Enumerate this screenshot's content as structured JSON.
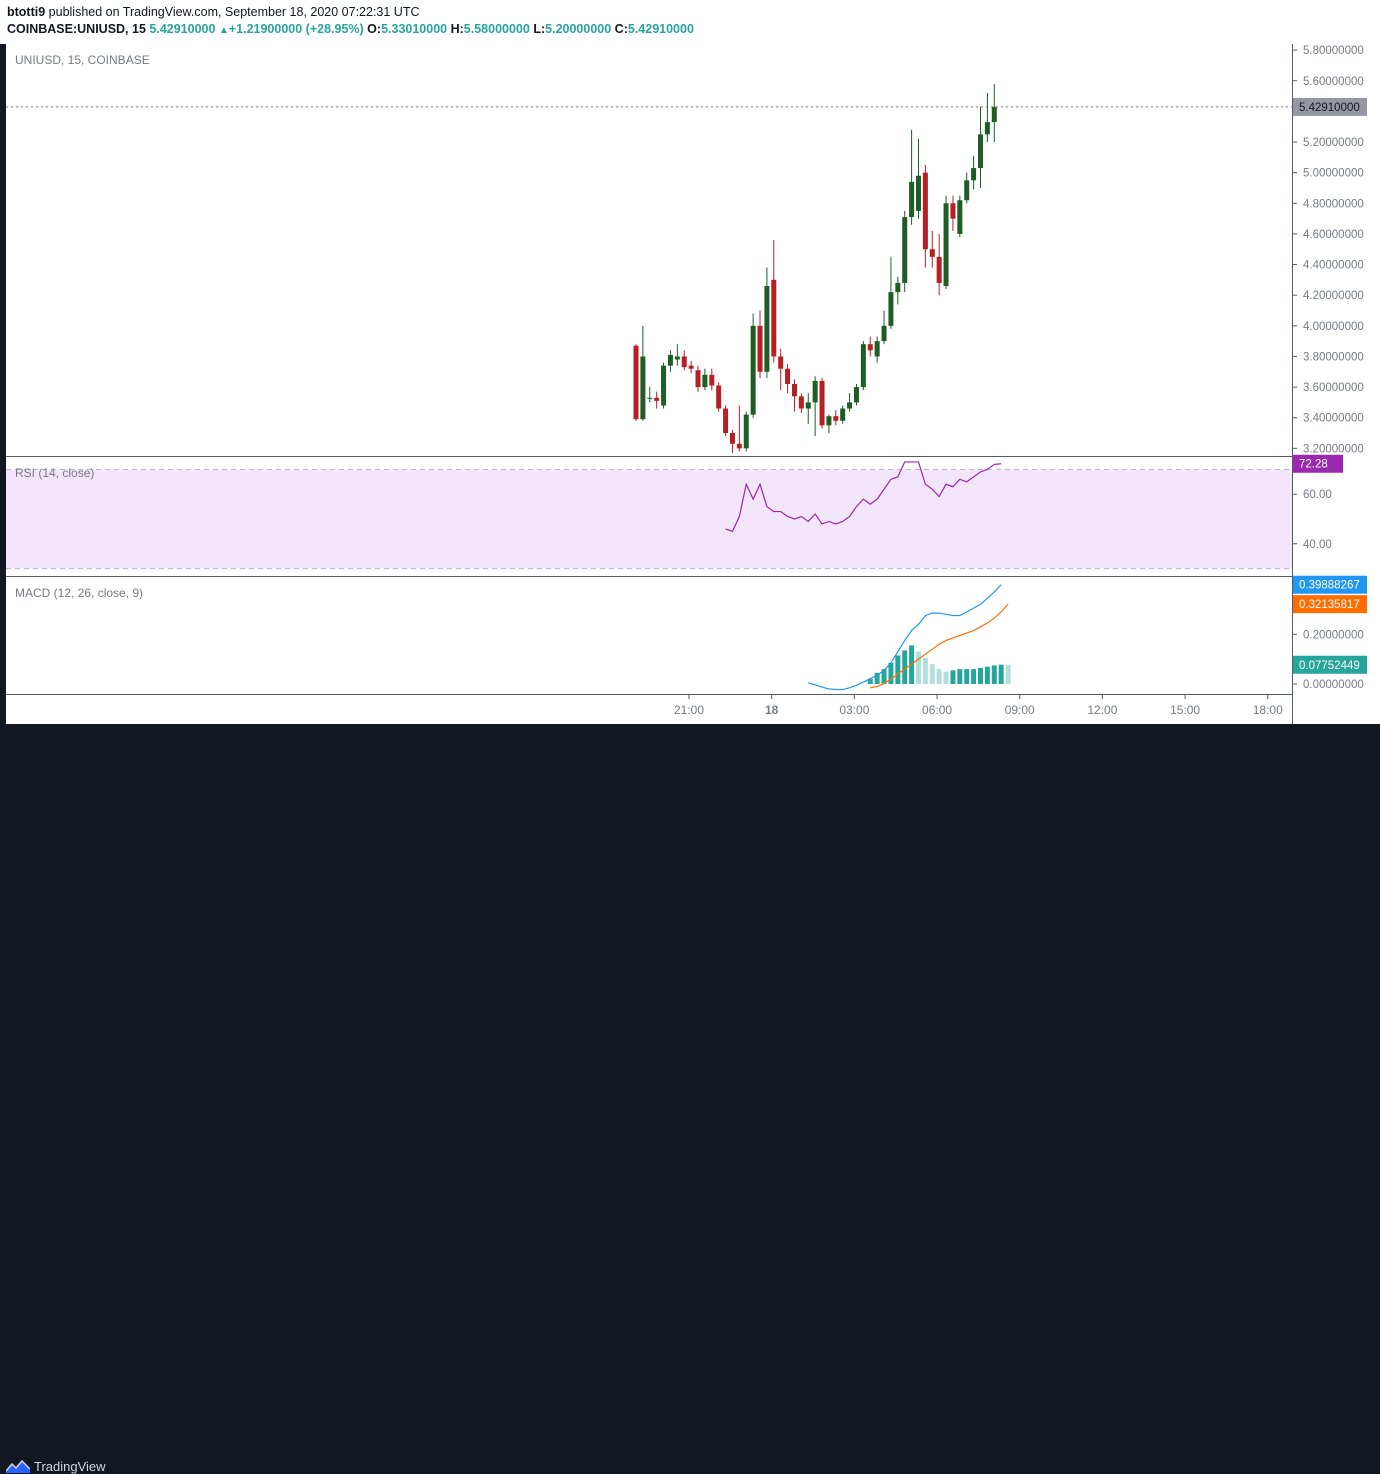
{
  "header": {
    "author": "btotti9",
    "published_text": " published on TradingView.com, September 18, 2020 07:22:31 UTC",
    "symbol": "COINBASE:UNIUSD, 15",
    "last": "5.42910000",
    "change": "+1.21900000 (+28.95%)",
    "o_label": "O:",
    "o_value": "5.33010000",
    "h_label": "H:",
    "h_value": "5.58000000",
    "l_label": "L:",
    "l_value": "5.20000000",
    "c_label": "C:",
    "c_value": "5.42910000"
  },
  "footer": {
    "brand": "TradingView"
  },
  "colors": {
    "bull": "#1e5e26",
    "bear": "#b71f24",
    "rsi_line": "#9c27b0",
    "rsi_band": "#f3e5fb",
    "macd_line": "#2196f3",
    "signal_line": "#ff6d00",
    "hist_strong": "#26a69a",
    "hist_weak": "#b2dfdb",
    "price_label_bg": "#9598a1"
  },
  "chart_data": [
    {
      "type": "candlestick",
      "pane": "price",
      "title": "UNIUSD, 15, COINBASE",
      "x_tick_labels": [
        "21:00",
        "18",
        "03:00",
        "06:00",
        "09:00",
        "12:00",
        "15:00",
        "18:00"
      ],
      "y_tick_labels": [
        "5.80000000",
        "5.60000000",
        "5.20000000",
        "5.00000000",
        "4.80000000",
        "4.60000000",
        "4.40000000",
        "4.20000000",
        "4.00000000",
        "3.80000000",
        "3.60000000",
        "3.40000000",
        "3.20000000"
      ],
      "ylim": [
        3.15,
        5.84
      ],
      "last_price_label": "5.42910000",
      "last_price": 5.4291,
      "candles": [
        {
          "o": 3.87,
          "h": 3.88,
          "l": 3.38,
          "c": 3.39
        },
        {
          "o": 3.39,
          "h": 4.0,
          "l": 3.38,
          "c": 3.8
        },
        {
          "o": 3.53,
          "h": 3.6,
          "l": 3.5,
          "c": 3.53
        },
        {
          "o": 3.53,
          "h": 3.57,
          "l": 3.46,
          "c": 3.51
        },
        {
          "o": 3.48,
          "h": 3.76,
          "l": 3.46,
          "c": 3.74
        },
        {
          "o": 3.74,
          "h": 3.84,
          "l": 3.7,
          "c": 3.81
        },
        {
          "o": 3.78,
          "h": 3.88,
          "l": 3.74,
          "c": 3.8
        },
        {
          "o": 3.8,
          "h": 3.84,
          "l": 3.71,
          "c": 3.73
        },
        {
          "o": 3.74,
          "h": 3.77,
          "l": 3.69,
          "c": 3.72
        },
        {
          "o": 3.71,
          "h": 3.74,
          "l": 3.57,
          "c": 3.6
        },
        {
          "o": 3.6,
          "h": 3.72,
          "l": 3.58,
          "c": 3.68
        },
        {
          "o": 3.68,
          "h": 3.72,
          "l": 3.58,
          "c": 3.61
        },
        {
          "o": 3.61,
          "h": 3.63,
          "l": 3.44,
          "c": 3.46
        },
        {
          "o": 3.46,
          "h": 3.48,
          "l": 3.28,
          "c": 3.3
        },
        {
          "o": 3.3,
          "h": 3.32,
          "l": 3.17,
          "c": 3.23
        },
        {
          "o": 3.23,
          "h": 3.48,
          "l": 3.18,
          "c": 3.2
        },
        {
          "o": 3.2,
          "h": 3.44,
          "l": 3.18,
          "c": 3.42
        },
        {
          "o": 3.42,
          "h": 4.08,
          "l": 3.4,
          "c": 4.0
        },
        {
          "o": 4.0,
          "h": 4.1,
          "l": 3.66,
          "c": 3.7
        },
        {
          "o": 3.7,
          "h": 4.38,
          "l": 3.66,
          "c": 4.26
        },
        {
          "o": 4.3,
          "h": 4.56,
          "l": 3.76,
          "c": 3.8
        },
        {
          "o": 3.8,
          "h": 3.85,
          "l": 3.58,
          "c": 3.72
        },
        {
          "o": 3.72,
          "h": 3.75,
          "l": 3.56,
          "c": 3.62
        },
        {
          "o": 3.62,
          "h": 3.65,
          "l": 3.44,
          "c": 3.54
        },
        {
          "o": 3.54,
          "h": 3.56,
          "l": 3.43,
          "c": 3.46
        },
        {
          "o": 3.46,
          "h": 3.56,
          "l": 3.36,
          "c": 3.5
        },
        {
          "o": 3.5,
          "h": 3.67,
          "l": 3.28,
          "c": 3.64
        },
        {
          "o": 3.64,
          "h": 3.66,
          "l": 3.33,
          "c": 3.35
        },
        {
          "o": 3.35,
          "h": 3.42,
          "l": 3.3,
          "c": 3.41
        },
        {
          "o": 3.41,
          "h": 3.45,
          "l": 3.35,
          "c": 3.38
        },
        {
          "o": 3.38,
          "h": 3.48,
          "l": 3.36,
          "c": 3.46
        },
        {
          "o": 3.46,
          "h": 3.56,
          "l": 3.44,
          "c": 3.5
        },
        {
          "o": 3.5,
          "h": 3.62,
          "l": 3.48,
          "c": 3.6
        },
        {
          "o": 3.6,
          "h": 3.9,
          "l": 3.58,
          "c": 3.88
        },
        {
          "o": 3.88,
          "h": 3.93,
          "l": 3.8,
          "c": 3.84
        },
        {
          "o": 3.8,
          "h": 3.93,
          "l": 3.76,
          "c": 3.9
        },
        {
          "o": 3.9,
          "h": 4.1,
          "l": 3.88,
          "c": 4.0
        },
        {
          "o": 4.0,
          "h": 4.45,
          "l": 3.98,
          "c": 4.22
        },
        {
          "o": 4.22,
          "h": 4.32,
          "l": 4.14,
          "c": 4.28
        },
        {
          "o": 4.28,
          "h": 4.75,
          "l": 4.22,
          "c": 4.71
        },
        {
          "o": 4.71,
          "h": 5.28,
          "l": 4.66,
          "c": 4.94
        },
        {
          "o": 4.75,
          "h": 5.22,
          "l": 4.7,
          "c": 4.98
        },
        {
          "o": 5.0,
          "h": 5.05,
          "l": 4.38,
          "c": 4.5
        },
        {
          "o": 4.5,
          "h": 4.62,
          "l": 4.38,
          "c": 4.45
        },
        {
          "o": 4.45,
          "h": 4.6,
          "l": 4.2,
          "c": 4.28
        },
        {
          "o": 4.26,
          "h": 4.85,
          "l": 4.24,
          "c": 4.8
        },
        {
          "o": 4.8,
          "h": 4.85,
          "l": 4.62,
          "c": 4.7
        },
        {
          "o": 4.6,
          "h": 4.85,
          "l": 4.58,
          "c": 4.82
        },
        {
          "o": 4.82,
          "h": 5.0,
          "l": 4.8,
          "c": 4.95
        },
        {
          "o": 4.95,
          "h": 5.11,
          "l": 4.89,
          "c": 5.03
        },
        {
          "o": 5.03,
          "h": 5.43,
          "l": 4.9,
          "c": 5.25
        },
        {
          "o": 5.25,
          "h": 5.52,
          "l": 5.2,
          "c": 5.33
        },
        {
          "o": 5.33,
          "h": 5.58,
          "l": 5.2,
          "c": 5.4291
        }
      ]
    },
    {
      "type": "line",
      "pane": "rsi",
      "title": "RSI (14, close)",
      "y_tick_labels": [
        "60.00",
        "40.00"
      ],
      "bands": [
        70,
        30
      ],
      "ylim": [
        27,
        75
      ],
      "last_value_label": "72.28",
      "start_index": 13,
      "values": [
        46,
        45,
        51,
        64,
        58,
        64,
        55,
        53,
        53,
        51,
        50,
        51,
        49,
        52,
        48,
        49,
        48,
        49,
        51,
        55,
        58,
        56,
        58,
        62,
        66,
        67,
        73,
        73,
        73,
        64,
        62,
        59,
        64,
        63,
        66,
        65,
        67,
        69,
        70,
        72,
        72.28
      ]
    },
    {
      "type": "line+bar",
      "pane": "macd",
      "title": "MACD (12, 26, close, 9)",
      "y_tick_labels": [
        "0.20000000",
        "0.00000000"
      ],
      "ylim": [
        -0.04,
        0.43
      ],
      "last_value_labels": [
        "0.39888267",
        "0.32135817",
        "0.07752449"
      ],
      "macd_start_index": 25,
      "macd": [
        0.005,
        -0.003,
        -0.012,
        -0.02,
        -0.022,
        -0.022,
        -0.015,
        -0.005,
        0.008,
        0.022,
        0.035,
        0.055,
        0.085,
        0.13,
        0.175,
        0.215,
        0.24,
        0.275,
        0.285,
        0.285,
        0.28,
        0.275,
        0.275,
        0.29,
        0.305,
        0.32,
        0.345,
        0.37,
        0.399
      ],
      "signal_start_index": 34,
      "signal": [
        -0.015,
        -0.01,
        0.002,
        0.02,
        0.04,
        0.06,
        0.08,
        0.1,
        0.12,
        0.14,
        0.16,
        0.175,
        0.185,
        0.195,
        0.205,
        0.215,
        0.23,
        0.245,
        0.265,
        0.29,
        0.321
      ],
      "hist_start_index": 34,
      "histogram": [
        0.02,
        0.045,
        0.06,
        0.085,
        0.115,
        0.135,
        0.155,
        0.13,
        0.105,
        0.08,
        0.06,
        0.05,
        0.055,
        0.06,
        0.06,
        0.06,
        0.065,
        0.07,
        0.075,
        0.078,
        0.0775
      ]
    }
  ]
}
